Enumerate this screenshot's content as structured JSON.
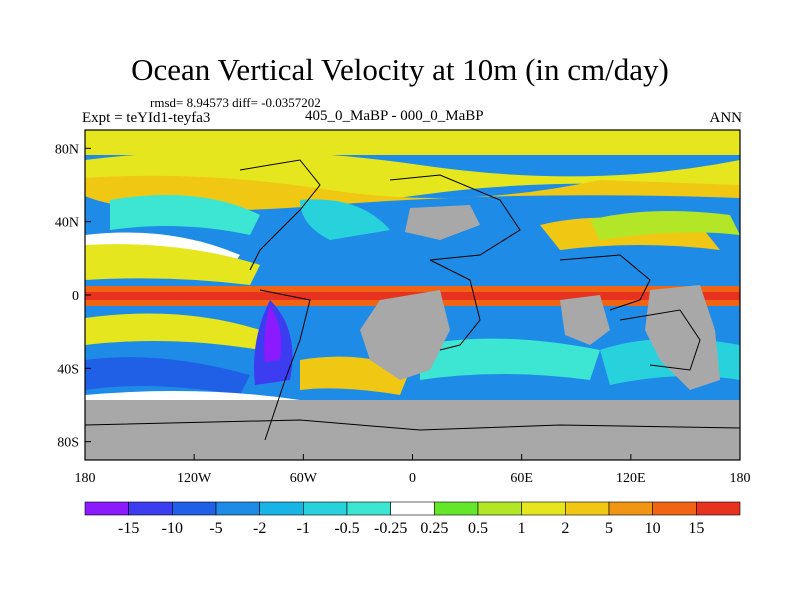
{
  "title": "Ocean Vertical Velocity at 10m (in cm/day)",
  "stats": "rmsd= 8.94573 diff= -0.0357202",
  "expt": "Expt = teYId1-teyfa3",
  "center_label": "405_0_MaBP - 000_0_MaBP",
  "season": "ANN",
  "lat_labels": [
    "80N",
    "40N",
    "0",
    "40S",
    "80S"
  ],
  "lon_labels": [
    "180",
    "120W",
    "60W",
    "0",
    "60E",
    "120E",
    "180"
  ],
  "colorbar": {
    "labels": [
      "-15",
      "-10",
      "-5",
      "-2",
      "-1",
      "-0.5",
      "-0.25",
      "0.25",
      "0.5",
      "1",
      "2",
      "5",
      "10",
      "15"
    ],
    "colors": [
      "#8c1aff",
      "#3c3cf0",
      "#2060e6",
      "#1e8ce6",
      "#18b4e6",
      "#28d2dc",
      "#3ce6d2",
      "#ffffff",
      "#64e62a",
      "#b4e628",
      "#e6e61e",
      "#f0c814",
      "#f09614",
      "#f06414",
      "#e6321e"
    ]
  },
  "land_color": "#a8a8a8"
}
